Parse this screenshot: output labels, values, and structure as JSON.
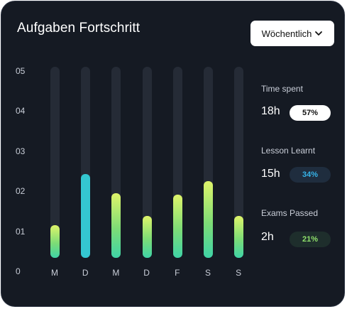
{
  "header": {
    "title": "Aufgaben Fortschritt",
    "period_select": "Wöchentlich",
    "period_icon": "chevron-down-icon"
  },
  "chart_data": {
    "type": "bar",
    "yticks": [
      "05",
      "04",
      "03",
      "02",
      "01",
      "0"
    ],
    "ylim": [
      0,
      5
    ],
    "categories": [
      "M",
      "D",
      "M",
      "D",
      "F",
      "S",
      "S"
    ],
    "values": [
      0.85,
      2.2,
      1.7,
      1.1,
      1.65,
      2.0,
      1.1
    ],
    "highlight_index": 1,
    "colors": {
      "default": "#b5ea6c",
      "highlight": "#34c7d1",
      "track": "#252b36"
    }
  },
  "stats": [
    {
      "label": "Time spent",
      "value": "18h",
      "percent": "57%",
      "color": "#ffffff"
    },
    {
      "label": "Lesson Learnt",
      "value": "15h",
      "percent": "34%",
      "color": "#36b3e8"
    },
    {
      "label": "Exams Passed",
      "value": "2h",
      "percent": "21%",
      "color": "#8fe06b"
    }
  ]
}
